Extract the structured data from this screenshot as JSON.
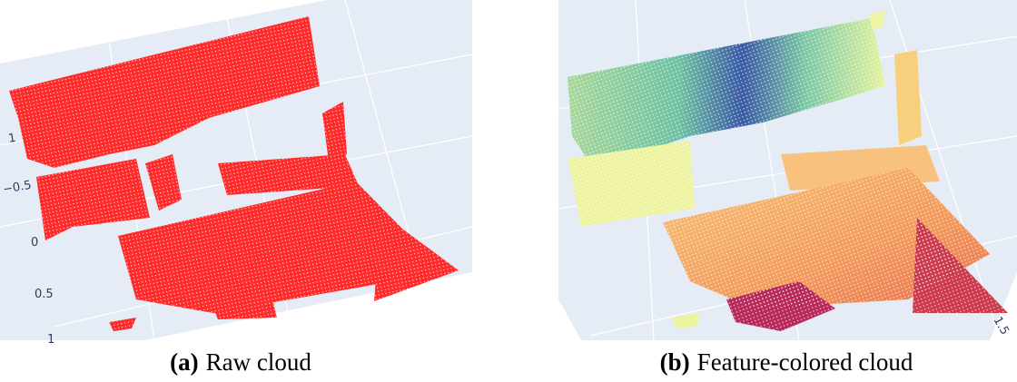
{
  "panels": [
    {
      "label": "(a)",
      "caption": "Raw cloud",
      "axis_ticks": [
        "1",
        "−0.5",
        "0",
        "0.5",
        "1"
      ]
    },
    {
      "label": "(b)",
      "caption": "Feature-colored cloud",
      "axis_ticks": [
        "1.5"
      ]
    }
  ]
}
